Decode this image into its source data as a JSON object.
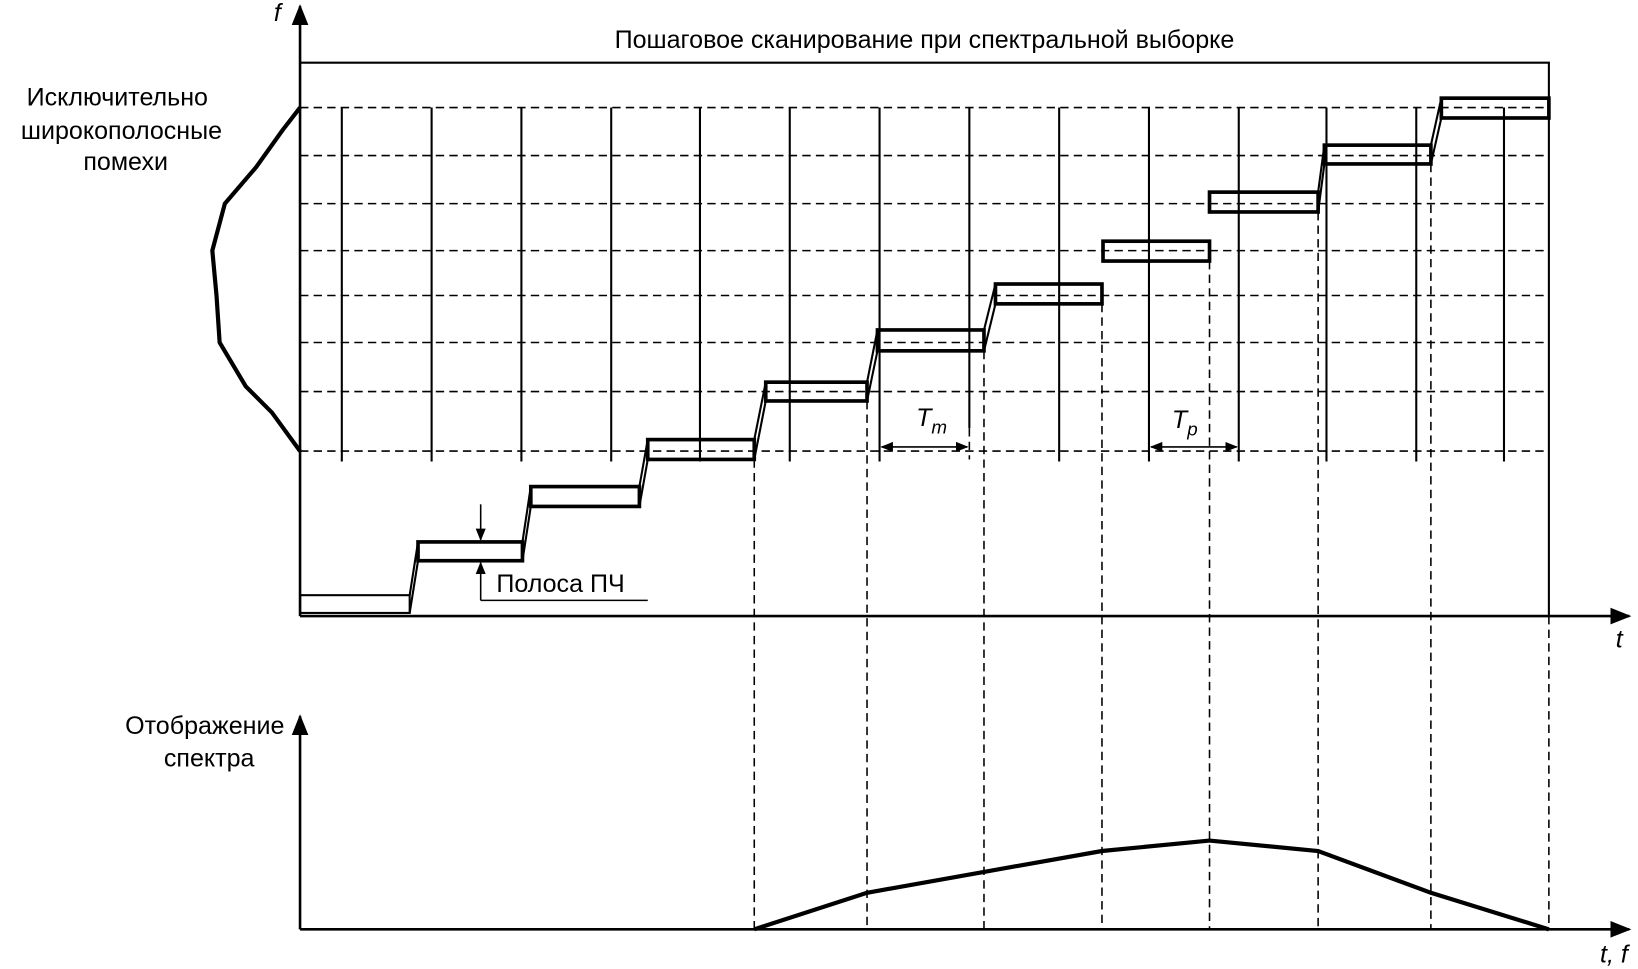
{
  "title": "Пошаговое сканирование при спектральной выборке",
  "top_axis": {
    "y_label": "f",
    "x_label": "t"
  },
  "interference_label": [
    "Исключительно",
    "широкополосные",
    "помехи"
  ],
  "if_band_label": "Полоса ПЧ",
  "tm_label": {
    "main": "T",
    "sub": "m"
  },
  "tp_label": {
    "main": "T",
    "sub": "p"
  },
  "bottom_axis": {
    "y_label": [
      "Отображение",
      "спектра"
    ],
    "x_label": "t, f"
  }
}
